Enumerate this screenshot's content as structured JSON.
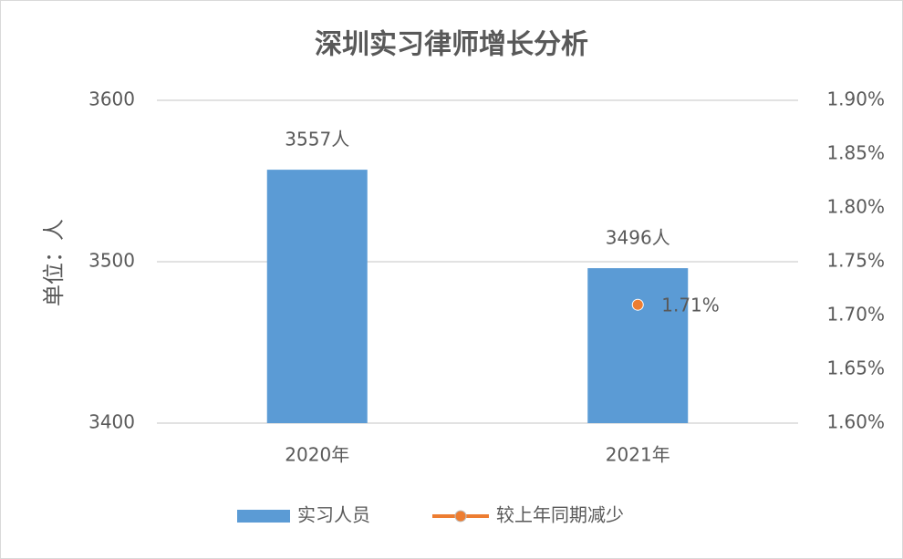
{
  "chart_data": {
    "type": "bar",
    "title": "深圳实习律师增长分析",
    "y_label": "单位：人",
    "categories": [
      "2020年",
      "2021年"
    ],
    "series": [
      {
        "name": "实习人员",
        "color": "#5b9bd5",
        "values": [
          3557,
          3496
        ],
        "value_labels": [
          "3557人",
          "3496人"
        ]
      },
      {
        "name": "较上年同期减少",
        "type": "line",
        "axis": "y2",
        "color": "#ed7d31",
        "values": [
          null,
          1.71
        ],
        "value_labels": [
          null,
          "1.71%"
        ]
      }
    ],
    "ylim": [
      3400,
      3600
    ],
    "yticks": [
      3400,
      3500,
      3600
    ],
    "y2lim": [
      1.6,
      1.9
    ],
    "y2ticks": [
      {
        "value": 1.6,
        "label": "1.60%"
      },
      {
        "value": 1.65,
        "label": "1.65%"
      },
      {
        "value": 1.7,
        "label": "1.70%"
      },
      {
        "value": 1.75,
        "label": "1.75%"
      },
      {
        "value": 1.8,
        "label": "1.80%"
      },
      {
        "value": 1.85,
        "label": "1.85%"
      },
      {
        "value": 1.9,
        "label": "1.90%"
      }
    ],
    "grid": true,
    "legend": "bottom"
  }
}
